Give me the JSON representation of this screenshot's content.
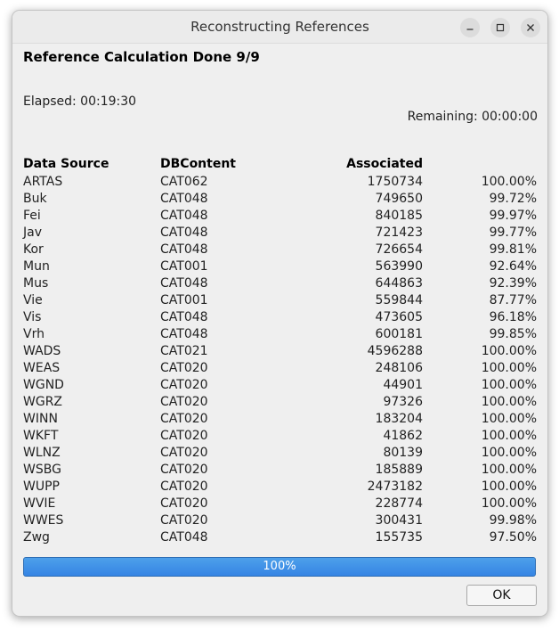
{
  "window": {
    "title": "Reconstructing References"
  },
  "heading": "Reference Calculation Done 9/9",
  "elapsed": "Elapsed: 00:19:30",
  "remaining": "Remaining: 00:00:00",
  "table": {
    "headers": [
      "Data Source",
      "DBContent",
      "Associated",
      ""
    ],
    "rows": [
      [
        "ARTAS",
        "CAT062",
        "1750734",
        "100.00%"
      ],
      [
        "Buk",
        "CAT048",
        "749650",
        "99.72%"
      ],
      [
        "Fei",
        "CAT048",
        "840185",
        "99.97%"
      ],
      [
        "Jav",
        "CAT048",
        "721423",
        "99.77%"
      ],
      [
        "Kor",
        "CAT048",
        "726654",
        "99.81%"
      ],
      [
        "Mun",
        "CAT001",
        "563990",
        "92.64%"
      ],
      [
        "Mus",
        "CAT048",
        "644863",
        "92.39%"
      ],
      [
        "Vie",
        "CAT001",
        "559844",
        "87.77%"
      ],
      [
        "Vis",
        "CAT048",
        "473605",
        "96.18%"
      ],
      [
        "Vrh",
        "CAT048",
        "600181",
        "99.85%"
      ],
      [
        "WADS",
        "CAT021",
        "4596288",
        "100.00%"
      ],
      [
        "WEAS",
        "CAT020",
        "248106",
        "100.00%"
      ],
      [
        "WGND",
        "CAT020",
        "44901",
        "100.00%"
      ],
      [
        "WGRZ",
        "CAT020",
        "97326",
        "100.00%"
      ],
      [
        "WINN",
        "CAT020",
        "183204",
        "100.00%"
      ],
      [
        "WKFT",
        "CAT020",
        "41862",
        "100.00%"
      ],
      [
        "WLNZ",
        "CAT020",
        "80139",
        "100.00%"
      ],
      [
        "WSBG",
        "CAT020",
        "185889",
        "100.00%"
      ],
      [
        "WUPP",
        "CAT020",
        "2473182",
        "100.00%"
      ],
      [
        "WVIE",
        "CAT020",
        "228774",
        "100.00%"
      ],
      [
        "WWES",
        "CAT020",
        "300431",
        "99.98%"
      ],
      [
        "Zwg",
        "CAT048",
        "155735",
        "97.50%"
      ]
    ]
  },
  "progress": {
    "value": 1.0,
    "label": "100%"
  },
  "buttons": {
    "ok": "OK"
  },
  "icons": {
    "minimize": "minimize-icon",
    "maximize": "maximize-icon",
    "close": "close-icon"
  },
  "colors": {
    "progress": "#3584e4"
  }
}
